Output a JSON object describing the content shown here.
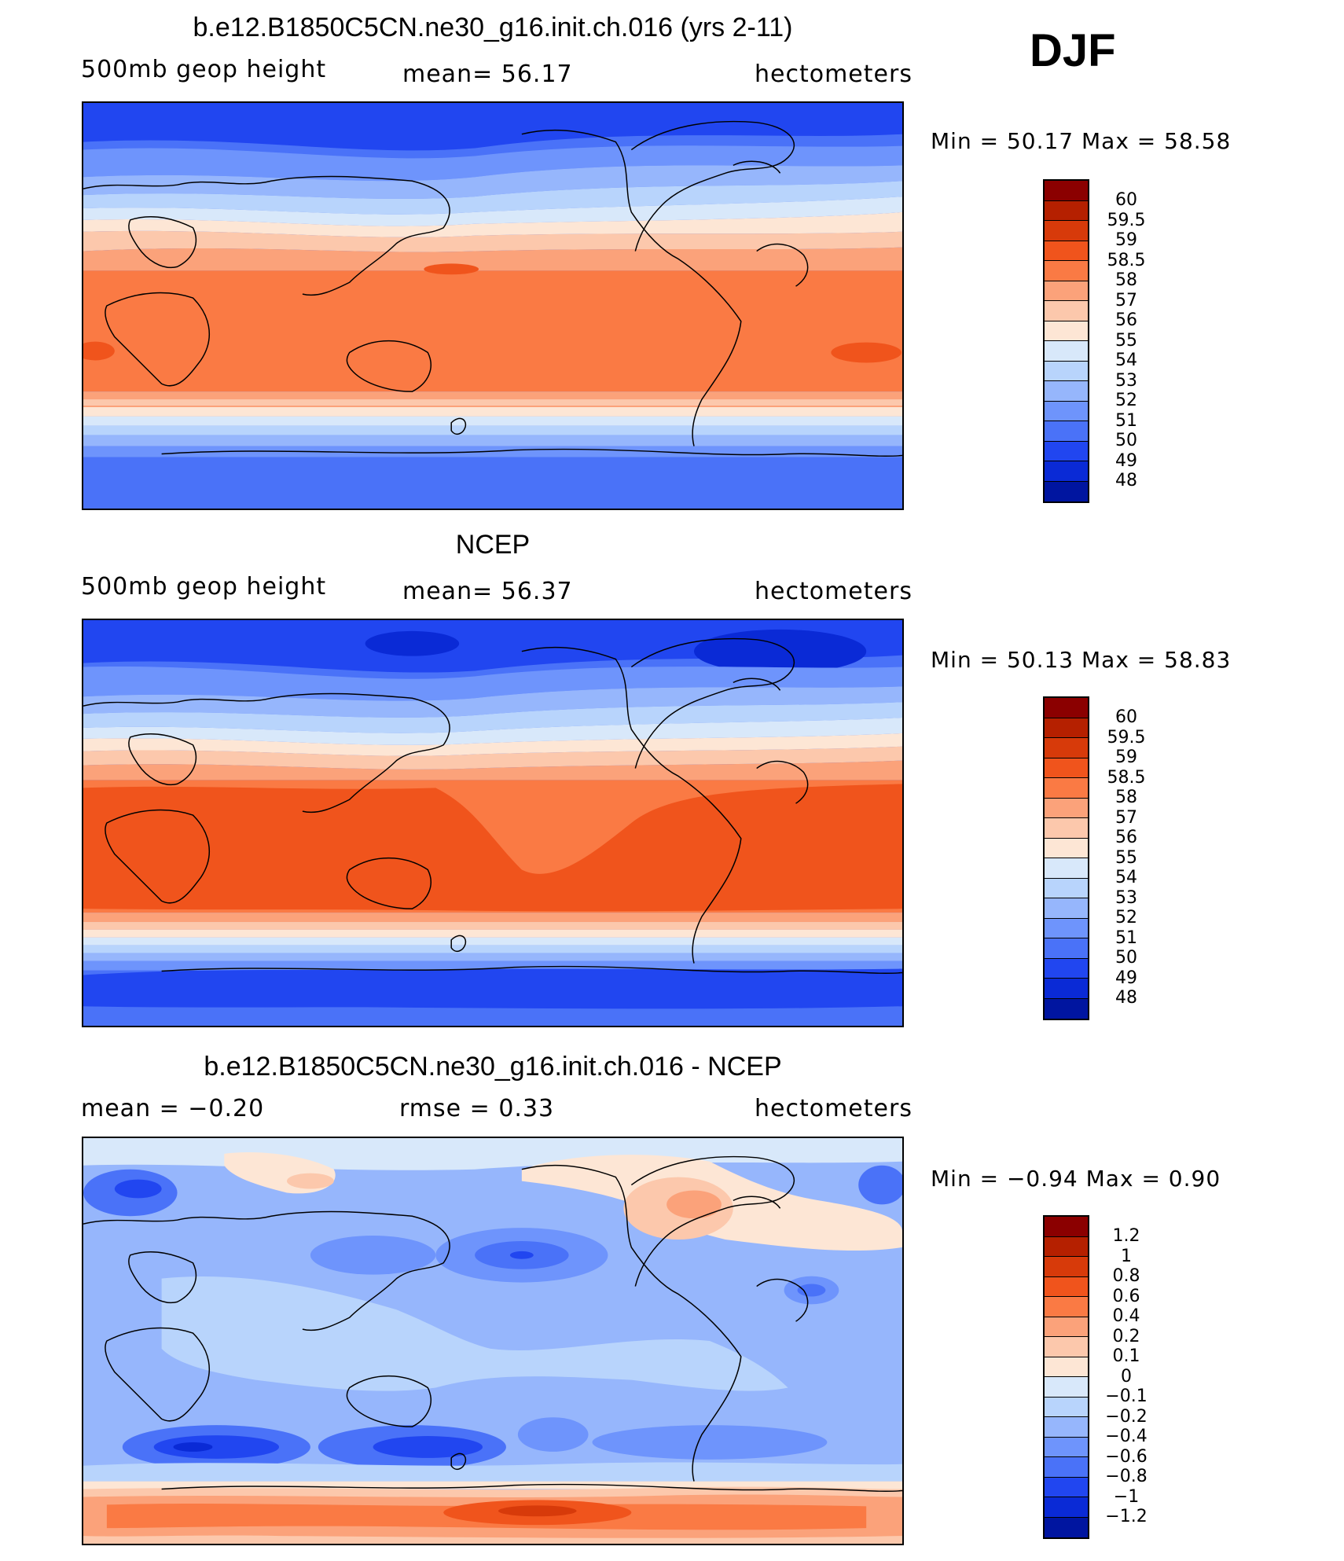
{
  "season": "DJF",
  "panels": [
    {
      "title": "b.e12.B1850C5CN.ne30_g16.init.ch.016 (yrs 2-11)",
      "left_label": "500mb geop height",
      "center_label": "mean=  56.17",
      "right_label": "hectometers",
      "minmax": "Min =   50.17 Max =   58.58",
      "colorbar": {
        "colors": [
          "#8b0000",
          "#b52000",
          "#d73a0a",
          "#f0541c",
          "#fa7a44",
          "#fba27a",
          "#fcc8ac",
          "#fde6d5",
          "#d8e8fa",
          "#b8d4fc",
          "#96b6fc",
          "#6e94fc",
          "#4a72f8",
          "#2146f0",
          "#0a2ad6",
          "#0015a0"
        ],
        "labels": [
          "60",
          "59.5",
          "59",
          "58.5",
          "58",
          "57",
          "56",
          "55",
          "54",
          "53",
          "52",
          "51",
          "50",
          "49",
          "48"
        ]
      }
    },
    {
      "title": "NCEP",
      "left_label": "500mb geop height",
      "center_label": "mean=  56.37",
      "right_label": "hectometers",
      "minmax": "Min =   50.13 Max =   58.83",
      "colorbar": {
        "colors": [
          "#8b0000",
          "#b52000",
          "#d73a0a",
          "#f0541c",
          "#fa7a44",
          "#fba27a",
          "#fcc8ac",
          "#fde6d5",
          "#d8e8fa",
          "#b8d4fc",
          "#96b6fc",
          "#6e94fc",
          "#4a72f8",
          "#2146f0",
          "#0a2ad6",
          "#0015a0"
        ],
        "labels": [
          "60",
          "59.5",
          "59",
          "58.5",
          "58",
          "57",
          "56",
          "55",
          "54",
          "53",
          "52",
          "51",
          "50",
          "49",
          "48"
        ]
      }
    },
    {
      "title": "b.e12.B1850C5CN.ne30_g16.init.ch.016 - NCEP",
      "left_label": "mean =   −0.20",
      "center_label": "rmse =    0.33",
      "right_label": "hectometers",
      "minmax": "Min =  −0.94 Max =    0.90",
      "colorbar": {
        "colors": [
          "#8b0000",
          "#b52000",
          "#d73a0a",
          "#f0541c",
          "#fa7a44",
          "#fba27a",
          "#fcc8ac",
          "#fde6d5",
          "#d8e8fa",
          "#b8d4fc",
          "#96b6fc",
          "#6e94fc",
          "#4a72f8",
          "#2146f0",
          "#0a2ad6",
          "#0015a0"
        ],
        "labels": [
          "1.2",
          "1",
          "0.8",
          "0.6",
          "0.4",
          "0.2",
          "0.1",
          "0",
          "−0.1",
          "−0.2",
          "−0.4",
          "−0.6",
          "−0.8",
          "−1",
          "−1.2"
        ]
      }
    }
  ]
}
